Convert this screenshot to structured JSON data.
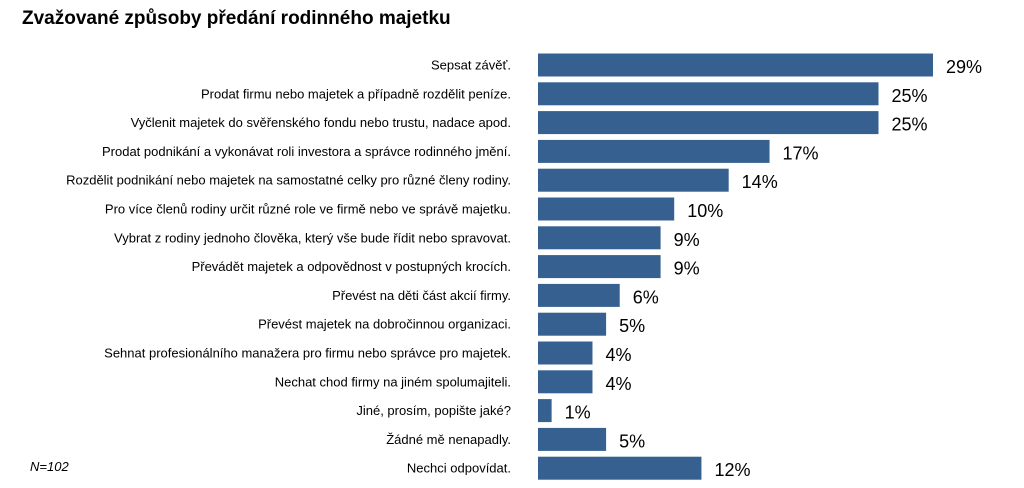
{
  "chart_data": {
    "type": "bar",
    "orientation": "horizontal",
    "title": "Zvažované způsoby předání rodinného majetku",
    "note": "N=102",
    "bar_color": "#35608F",
    "value_suffix": "%",
    "xlim": [
      0,
      35
    ],
    "categories": [
      "Sepsat závěť.",
      "Prodat firmu nebo majetek a případně rozdělit peníze.",
      "Vyčlenit majetek do svěřenského fondu nebo trustu, nadace apod.",
      "Prodat podnikání a vykonávat roli investora a správce rodinného jmění.",
      "Rozdělit podnikání nebo majetek na samostatné celky pro různé členy rodiny.",
      "Pro více členů rodiny určit různé role ve firmě nebo ve správě majetku.",
      "Vybrat z rodiny jednoho člověka, který vše bude řídit nebo spravovat.",
      "Převádět majetek a odpovědnost v postupných krocích.",
      "Převést na děti část akcií firmy.",
      "Převést majetek na dobročinnou organizaci.",
      "Sehnat profesionálního manažera pro firmu nebo správce pro majetek.",
      "Nechat chod firmy na jiném spolumajiteli.",
      "Jiné, prosím, popište jaké?",
      "Žádné mě nenapadly.",
      "Nechci odpovídat."
    ],
    "values": [
      29,
      25,
      25,
      17,
      14,
      10,
      9,
      9,
      6,
      5,
      4,
      4,
      1,
      5,
      12
    ]
  }
}
